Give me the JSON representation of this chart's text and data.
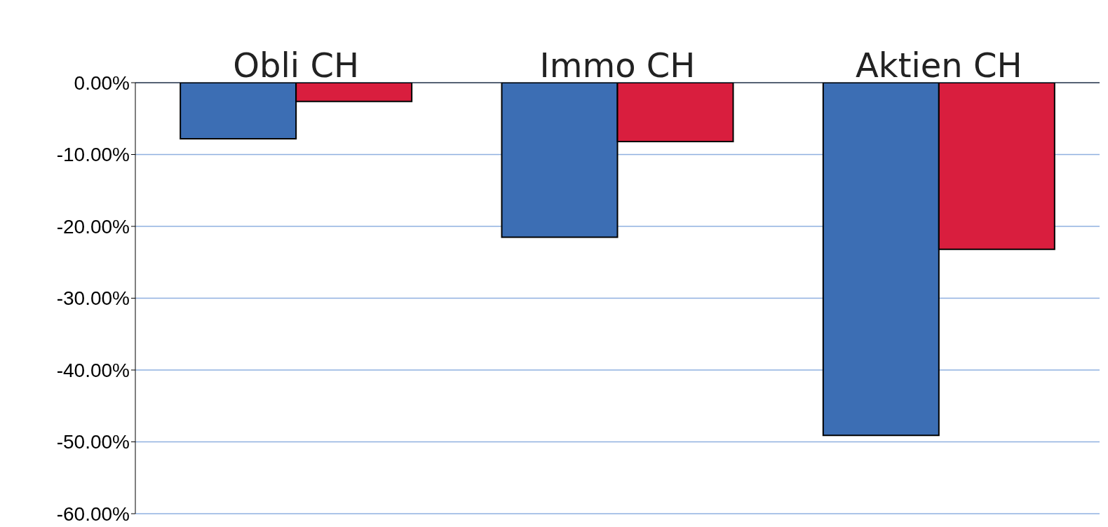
{
  "chart_data": {
    "type": "bar",
    "categories": [
      "Obli CH",
      "Immo CH",
      "Aktien CH"
    ],
    "series": [
      {
        "color": "#3c6eb4",
        "values": [
          -7.8,
          -21.5,
          -49.1
        ]
      },
      {
        "color": "#d91e3e",
        "values": [
          -2.6,
          -8.2,
          -23.2
        ]
      }
    ],
    "ylim": [
      -60,
      0
    ],
    "yticks": [
      {
        "value": 0,
        "label": "0.00%"
      },
      {
        "value": -10,
        "label": "-10.00%"
      },
      {
        "value": -20,
        "label": "-20.00%"
      },
      {
        "value": -30,
        "label": "-30.00%"
      },
      {
        "value": -40,
        "label": "-40.00%"
      },
      {
        "value": -50,
        "label": "-50.00%"
      },
      {
        "value": -60,
        "label": "-60.00%"
      }
    ],
    "grid": "y"
  }
}
